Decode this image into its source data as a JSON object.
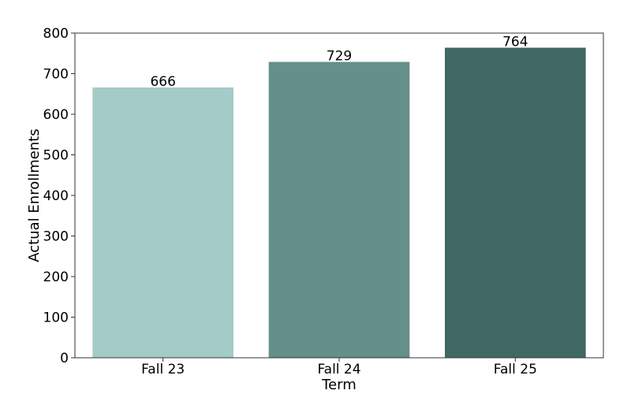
{
  "chart_data": {
    "type": "bar",
    "categories": [
      "Fall 23",
      "Fall 24",
      "Fall 25"
    ],
    "values": [
      666,
      729,
      764
    ],
    "data_labels": [
      "666",
      "729",
      "764"
    ],
    "xlabel": "Term",
    "ylabel": "Actual Enrollments",
    "ylim": [
      0,
      800
    ],
    "yticks": [
      0,
      100,
      200,
      300,
      400,
      500,
      600,
      700,
      800
    ],
    "grid": false,
    "legend": "none",
    "bar_colors": [
      "#a5cbc8",
      "#658f8b",
      "#416864"
    ]
  }
}
